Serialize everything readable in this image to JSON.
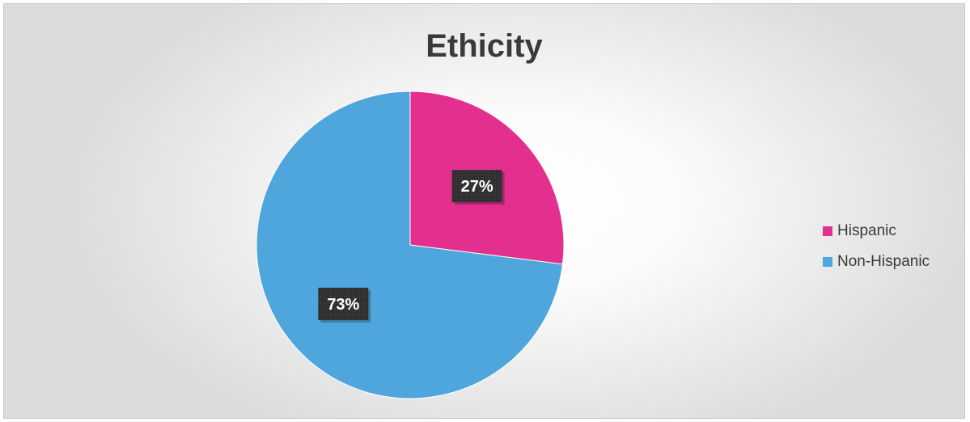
{
  "chart_data": {
    "type": "pie",
    "title": "Ethicity",
    "categories": [
      "Hispanic",
      "Non-Hispanic"
    ],
    "values": [
      27,
      73
    ],
    "data_labels": [
      "27%",
      "73%"
    ],
    "colors": [
      "#e3308f",
      "#4fa6dd"
    ],
    "legend_position": "right",
    "start_angle": "12 o'clock, clockwise"
  }
}
